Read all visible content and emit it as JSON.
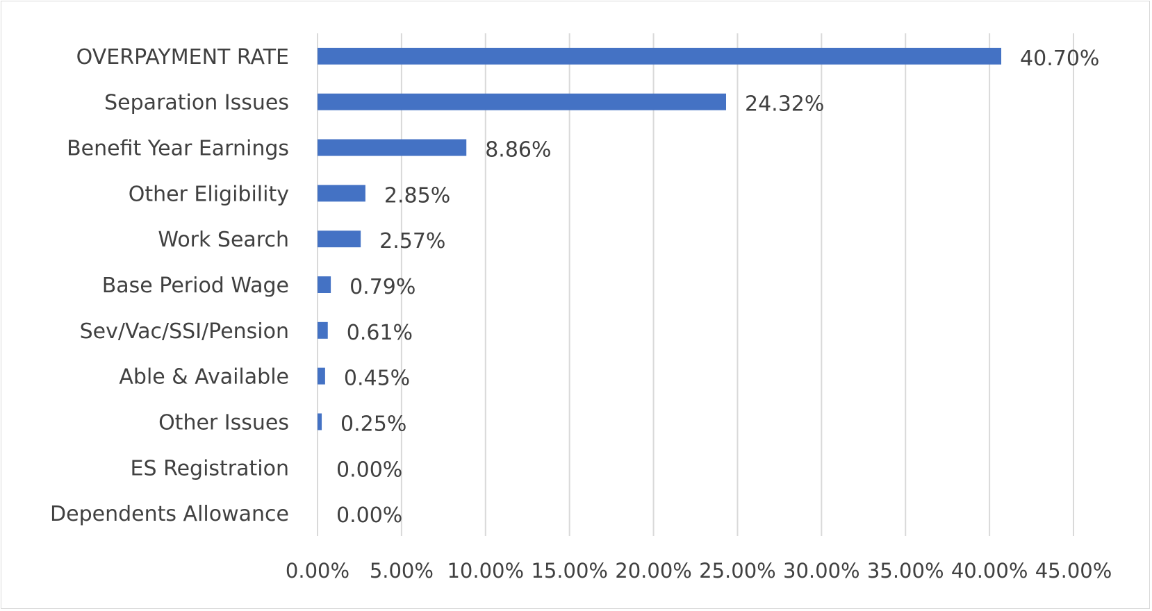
{
  "chart_data": {
    "type": "bar",
    "orientation": "horizontal",
    "categories": [
      "OVERPAYMENT RATE",
      "Separation Issues",
      "Benefit Year Earnings",
      "Other Eligibility",
      "Work Search",
      "Base Period Wage",
      "Sev/Vac/SSI/Pension",
      "Able & Available",
      "Other Issues",
      "ES Registration",
      "Dependents Allowance"
    ],
    "values": [
      40.7,
      24.32,
      8.86,
      2.85,
      2.57,
      0.79,
      0.61,
      0.45,
      0.25,
      0.0,
      0.0
    ],
    "data_labels": [
      "40.70%",
      "24.32%",
      "8.86%",
      "2.85%",
      "2.57%",
      "0.79%",
      "0.61%",
      "0.45%",
      "0.25%",
      "0.00%",
      "0.00%"
    ],
    "x_ticks": [
      "0.00%",
      "5.00%",
      "10.00%",
      "15.00%",
      "20.00%",
      "25.00%",
      "30.00%",
      "35.00%",
      "40.00%",
      "45.00%"
    ],
    "xlim": [
      0,
      45
    ],
    "grid": "vertical",
    "bar_color": "#4472C4",
    "grid_color": "#D9D9D9",
    "legend": "none"
  }
}
